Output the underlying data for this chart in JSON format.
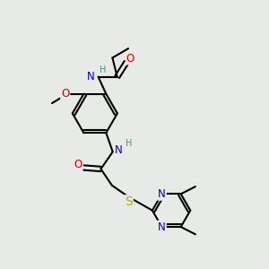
{
  "bg_color": "#e8eae8",
  "atom_colors": {
    "C": "#000000",
    "N": "#0000cc",
    "O": "#cc0000",
    "S": "#bbaa00",
    "H": "#4a8a8a"
  },
  "bond_color": "#000000",
  "bond_width": 1.5,
  "font_size": 8.5,
  "fig_size": [
    3.0,
    3.0
  ],
  "dpi": 100
}
